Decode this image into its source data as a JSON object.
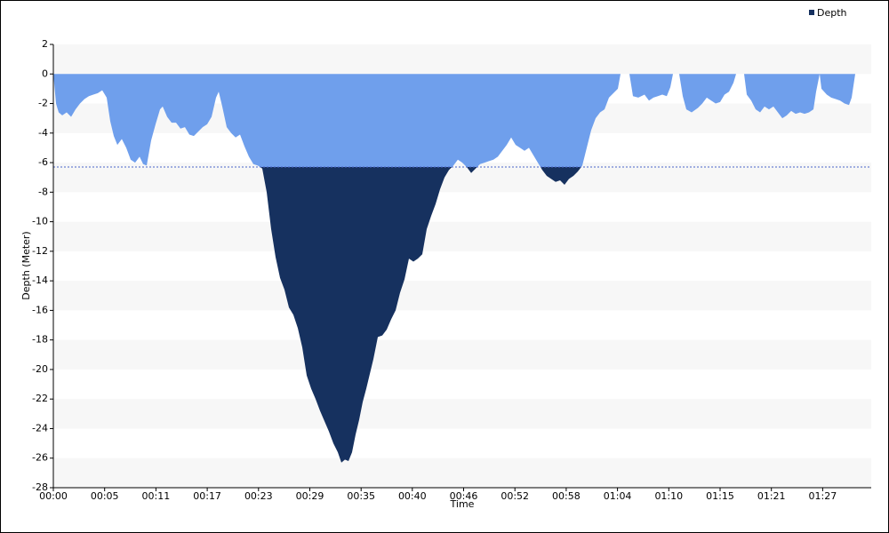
{
  "chart_data": {
    "type": "area",
    "title": null,
    "xlabel": "Time",
    "ylabel": "Depth (Meter)",
    "xlim": [
      0,
      92
    ],
    "ylim": [
      -28,
      2
    ],
    "xticks": [
      {
        "value": 0,
        "label": "00:00"
      },
      {
        "value": 5.77,
        "label": "00:05"
      },
      {
        "value": 11.54,
        "label": "00:11"
      },
      {
        "value": 17.31,
        "label": "00:17"
      },
      {
        "value": 23.08,
        "label": "00:23"
      },
      {
        "value": 28.85,
        "label": "00:29"
      },
      {
        "value": 34.62,
        "label": "00:35"
      },
      {
        "value": 40.38,
        "label": "00:40"
      },
      {
        "value": 46.15,
        "label": "00:46"
      },
      {
        "value": 51.92,
        "label": "00:52"
      },
      {
        "value": 57.69,
        "label": "00:58"
      },
      {
        "value": 63.46,
        "label": "01:04"
      },
      {
        "value": 69.23,
        "label": "01:10"
      },
      {
        "value": 75,
        "label": "01:15"
      },
      {
        "value": 80.77,
        "label": "01:21"
      },
      {
        "value": 86.54,
        "label": "01:27"
      }
    ],
    "yticks": [
      -28,
      -26,
      -24,
      -22,
      -20,
      -18,
      -16,
      -14,
      -12,
      -10,
      -8,
      -6,
      -4,
      -2,
      0,
      2
    ],
    "threshold": -6.3,
    "threshold_color": "#4a64c8",
    "band_color": "#f7f7f7",
    "legend": "top-right",
    "x": [
      0,
      0.3,
      0.6,
      1,
      1.5,
      2,
      2.5,
      3,
      3.5,
      4,
      4.5,
      5,
      5.5,
      6,
      6.4,
      6.8,
      7.2,
      7.7,
      8.2,
      8.7,
      9.2,
      9.7,
      10.1,
      10.5,
      11,
      11.5,
      12,
      12.3,
      12.8,
      13.3,
      13.8,
      14.3,
      14.8,
      15.3,
      15.8,
      16.3,
      16.8,
      17.3,
      17.8,
      18.3,
      18.6,
      19,
      19.5,
      20,
      20.5,
      21,
      21.5,
      22,
      22.5,
      23,
      23.5,
      24,
      24.5,
      25,
      25.5,
      26,
      26.5,
      27,
      27.5,
      28,
      28.5,
      29,
      29.5,
      30,
      30.5,
      31,
      31.5,
      32,
      32.4,
      32.8,
      33.2,
      33.6,
      34,
      34.4,
      34.8,
      35.2,
      35.6,
      36,
      36.5,
      37,
      37.5,
      38,
      38.5,
      39,
      39.5,
      40,
      40.5,
      41,
      41.5,
      42,
      42.5,
      43,
      43.5,
      44,
      44.5,
      45,
      45.5,
      46,
      46.5,
      47,
      47.5,
      48,
      48.5,
      49,
      49.5,
      50,
      50.5,
      51,
      51.5,
      52,
      52.5,
      53,
      53.5,
      54,
      54.5,
      55,
      55.5,
      56,
      56.5,
      57,
      57.5,
      58,
      58.5,
      59,
      59.5,
      60,
      60.5,
      61,
      61.5,
      62,
      62.5,
      63,
      63.5,
      63.8,
      64.8,
      65.2,
      65.8,
      66.5,
      67,
      67.5,
      68,
      68.5,
      69,
      69.4,
      69.7,
      70.4,
      70.8,
      71.2,
      71.8,
      72.5,
      73,
      73.5,
      74,
      74.5,
      75,
      75.5,
      76,
      76.5,
      76.8,
      77.7,
      78,
      78.5,
      79,
      79.5,
      80,
      80.5,
      81,
      81.5,
      82,
      82.5,
      83,
      83.5,
      84,
      84.5,
      85,
      85.5,
      85.8,
      86.2,
      86.4,
      87,
      87.5,
      88,
      88.5,
      89,
      89.5,
      89.8,
      90.2
    ],
    "series": [
      {
        "name": "Depth",
        "color": "#16315f",
        "color_shallow": "#6f9fec",
        "values": [
          0,
          -2,
          -2.6,
          -2.8,
          -2.6,
          -2.9,
          -2.4,
          -2,
          -1.7,
          -1.5,
          -1.4,
          -1.3,
          -1.1,
          -1.6,
          -3.2,
          -4.2,
          -4.8,
          -4.4,
          -5,
          -5.8,
          -6,
          -5.6,
          -6.1,
          -6.2,
          -4.5,
          -3.4,
          -2.4,
          -2.2,
          -2.9,
          -3.3,
          -3.3,
          -3.7,
          -3.6,
          -4.1,
          -4.2,
          -3.9,
          -3.6,
          -3.4,
          -2.9,
          -1.6,
          -1.2,
          -2.2,
          -3.6,
          -4,
          -4.3,
          -4.1,
          -4.9,
          -5.6,
          -6.1,
          -6.2,
          -6.4,
          -8,
          -10.5,
          -12.4,
          -13.8,
          -14.6,
          -15.8,
          -16.3,
          -17.2,
          -18.5,
          -20.4,
          -21.3,
          -22,
          -22.8,
          -23.5,
          -24.2,
          -25,
          -25.6,
          -26.3,
          -26.1,
          -26.2,
          -25.6,
          -24.4,
          -23.4,
          -22.2,
          -21.3,
          -20.3,
          -19.3,
          -17.8,
          -17.7,
          -17.3,
          -16.6,
          -16,
          -14.8,
          -13.9,
          -12.5,
          -12.7,
          -12.5,
          -12.2,
          -10.5,
          -9.6,
          -8.8,
          -7.8,
          -7,
          -6.5,
          -6.2,
          -5.8,
          -6,
          -6.3,
          -6.7,
          -6.4,
          -6.1,
          -6,
          -5.9,
          -5.8,
          -5.6,
          -5.2,
          -4.8,
          -4.3,
          -4.8,
          -5,
          -5.2,
          -5,
          -5.5,
          -6,
          -6.5,
          -6.9,
          -7.1,
          -7.3,
          -7.2,
          -7.5,
          -7.1,
          -6.9,
          -6.6,
          -6.2,
          -5,
          -3.8,
          -3,
          -2.6,
          -2.4,
          -1.6,
          -1.3,
          -1,
          0,
          0,
          -1.5,
          -1.6,
          -1.4,
          -1.8,
          -1.6,
          -1.5,
          -1.4,
          -1.5,
          -0.9,
          0,
          0,
          -1.5,
          -2.4,
          -2.6,
          -2.3,
          -2,
          -1.6,
          -1.8,
          -2,
          -1.9,
          -1.4,
          -1.2,
          -0.6,
          0,
          0,
          -1.4,
          -1.8,
          -2.4,
          -2.6,
          -2.2,
          -2.4,
          -2.2,
          -2.6,
          -3,
          -2.8,
          -2.5,
          -2.7,
          -2.6,
          -2.7,
          -2.6,
          -2.4,
          -1.2,
          0,
          -1,
          -1.4,
          -1.6,
          -1.7,
          -1.8,
          -2,
          -2.1,
          -1.6,
          0
        ]
      }
    ]
  }
}
